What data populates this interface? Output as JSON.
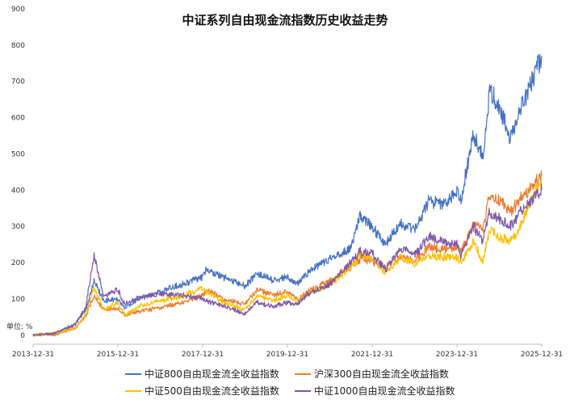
{
  "chart_data": {
    "type": "line",
    "title": "中证系列自由现金流指数历史收益走势",
    "unit_label": "单位: %",
    "ylim": [
      -25,
      900
    ],
    "yticks": [
      0,
      100,
      200,
      300,
      400,
      500,
      600,
      700,
      800,
      900
    ],
    "xlim": [
      "2013-12-31",
      "2025-12-31"
    ],
    "xticks": [
      "2013-12-31",
      "2015-12-31",
      "2017-12-31",
      "2019-12-31",
      "2021-12-31",
      "2023-12-31",
      "2025-12-31"
    ],
    "legend_position": "bottom",
    "grid": false,
    "series": [
      {
        "name": "中证800自由现金流全收益指数",
        "color": "#4472C4",
        "points": [
          [
            "2013-12-31",
            0
          ],
          [
            "2014-06-30",
            5
          ],
          [
            "2014-12-31",
            30
          ],
          [
            "2015-03-31",
            70
          ],
          [
            "2015-06-10",
            150
          ],
          [
            "2015-08-31",
            95
          ],
          [
            "2015-12-31",
            100
          ],
          [
            "2016-03-01",
            75
          ],
          [
            "2016-06-30",
            100
          ],
          [
            "2016-12-31",
            120
          ],
          [
            "2017-06-30",
            140
          ],
          [
            "2017-12-31",
            160
          ],
          [
            "2018-01-31",
            180
          ],
          [
            "2018-06-30",
            160
          ],
          [
            "2018-12-31",
            135
          ],
          [
            "2019-04-15",
            170
          ],
          [
            "2019-08-31",
            150
          ],
          [
            "2019-12-31",
            160
          ],
          [
            "2020-03-20",
            140
          ],
          [
            "2020-06-30",
            175
          ],
          [
            "2020-12-31",
            210
          ],
          [
            "2021-06-30",
            240
          ],
          [
            "2021-09-15",
            330
          ],
          [
            "2021-12-31",
            300
          ],
          [
            "2022-04-26",
            250
          ],
          [
            "2022-08-31",
            310
          ],
          [
            "2022-12-31",
            290
          ],
          [
            "2023-04-30",
            370
          ],
          [
            "2023-08-31",
            360
          ],
          [
            "2023-12-31",
            400
          ],
          [
            "2024-02-05",
            370
          ],
          [
            "2024-05-20",
            560
          ],
          [
            "2024-08-10",
            490
          ],
          [
            "2024-10-08",
            670
          ],
          [
            "2024-12-31",
            630
          ],
          [
            "2025-04-08",
            540
          ],
          [
            "2025-06-30",
            620
          ],
          [
            "2025-09-30",
            700
          ],
          [
            "2025-12-31",
            770
          ]
        ]
      },
      {
        "name": "沪深300自由现金流全收益指数",
        "color": "#ED7D31",
        "points": [
          [
            "2013-12-31",
            0
          ],
          [
            "2014-06-30",
            0
          ],
          [
            "2014-12-31",
            20
          ],
          [
            "2015-03-31",
            55
          ],
          [
            "2015-06-10",
            110
          ],
          [
            "2015-08-31",
            70
          ],
          [
            "2015-12-31",
            75
          ],
          [
            "2016-03-01",
            55
          ],
          [
            "2016-06-30",
            65
          ],
          [
            "2016-12-31",
            75
          ],
          [
            "2017-06-30",
            90
          ],
          [
            "2017-12-31",
            110
          ],
          [
            "2018-01-31",
            125
          ],
          [
            "2018-06-30",
            100
          ],
          [
            "2018-12-31",
            85
          ],
          [
            "2019-04-15",
            125
          ],
          [
            "2019-08-31",
            110
          ],
          [
            "2019-12-31",
            120
          ],
          [
            "2020-03-20",
            100
          ],
          [
            "2020-06-30",
            120
          ],
          [
            "2020-12-31",
            150
          ],
          [
            "2021-06-30",
            190
          ],
          [
            "2021-09-15",
            210
          ],
          [
            "2021-12-31",
            205
          ],
          [
            "2022-04-26",
            190
          ],
          [
            "2022-08-31",
            215
          ],
          [
            "2022-12-31",
            205
          ],
          [
            "2023-04-30",
            245
          ],
          [
            "2023-08-31",
            235
          ],
          [
            "2023-12-31",
            245
          ],
          [
            "2024-02-05",
            230
          ],
          [
            "2024-05-20",
            310
          ],
          [
            "2024-08-10",
            290
          ],
          [
            "2024-10-08",
            390
          ],
          [
            "2024-12-31",
            370
          ],
          [
            "2025-04-08",
            340
          ],
          [
            "2025-06-30",
            375
          ],
          [
            "2025-09-30",
            405
          ],
          [
            "2025-12-31",
            440
          ]
        ]
      },
      {
        "name": "中证500自由现金流全收益指数",
        "color": "#FFC000",
        "points": [
          [
            "2013-12-31",
            0
          ],
          [
            "2014-06-30",
            5
          ],
          [
            "2014-12-31",
            20
          ],
          [
            "2015-03-31",
            60
          ],
          [
            "2015-06-10",
            130
          ],
          [
            "2015-08-31",
            70
          ],
          [
            "2015-12-31",
            90
          ],
          [
            "2016-03-01",
            55
          ],
          [
            "2016-06-30",
            80
          ],
          [
            "2016-12-31",
            95
          ],
          [
            "2017-06-30",
            105
          ],
          [
            "2017-12-31",
            130
          ],
          [
            "2018-01-31",
            120
          ],
          [
            "2018-06-30",
            90
          ],
          [
            "2018-12-31",
            70
          ],
          [
            "2019-04-15",
            110
          ],
          [
            "2019-08-31",
            95
          ],
          [
            "2019-12-31",
            110
          ],
          [
            "2020-03-20",
            95
          ],
          [
            "2020-06-30",
            115
          ],
          [
            "2020-12-31",
            140
          ],
          [
            "2021-06-30",
            185
          ],
          [
            "2021-09-15",
            220
          ],
          [
            "2021-12-31",
            215
          ],
          [
            "2022-04-26",
            170
          ],
          [
            "2022-08-31",
            215
          ],
          [
            "2022-12-31",
            195
          ],
          [
            "2023-04-30",
            220
          ],
          [
            "2023-08-31",
            215
          ],
          [
            "2023-12-31",
            215
          ],
          [
            "2024-02-05",
            195
          ],
          [
            "2024-05-20",
            260
          ],
          [
            "2024-08-10",
            200
          ],
          [
            "2024-10-08",
            290
          ],
          [
            "2024-12-31",
            270
          ],
          [
            "2025-04-08",
            260
          ],
          [
            "2025-06-30",
            300
          ],
          [
            "2025-09-30",
            370
          ],
          [
            "2025-12-31",
            430
          ]
        ]
      },
      {
        "name": "中证1000自由现金流全收益指数",
        "color": "#7E57A8",
        "points": [
          [
            "2013-12-31",
            0
          ],
          [
            "2014-06-30",
            5
          ],
          [
            "2014-12-31",
            30
          ],
          [
            "2015-03-31",
            80
          ],
          [
            "2015-06-10",
            220
          ],
          [
            "2015-08-31",
            105
          ],
          [
            "2015-12-31",
            125
          ],
          [
            "2016-03-01",
            85
          ],
          [
            "2016-06-30",
            105
          ],
          [
            "2016-12-31",
            115
          ],
          [
            "2017-06-30",
            110
          ],
          [
            "2017-12-31",
            100
          ],
          [
            "2018-01-31",
            95
          ],
          [
            "2018-06-30",
            80
          ],
          [
            "2018-12-31",
            60
          ],
          [
            "2019-04-15",
            90
          ],
          [
            "2019-08-31",
            80
          ],
          [
            "2019-12-31",
            90
          ],
          [
            "2020-03-20",
            85
          ],
          [
            "2020-06-30",
            115
          ],
          [
            "2020-12-31",
            140
          ],
          [
            "2021-06-30",
            200
          ],
          [
            "2021-09-15",
            230
          ],
          [
            "2021-12-31",
            225
          ],
          [
            "2022-04-26",
            180
          ],
          [
            "2022-08-31",
            240
          ],
          [
            "2022-12-31",
            220
          ],
          [
            "2023-04-30",
            270
          ],
          [
            "2023-08-31",
            260
          ],
          [
            "2023-12-31",
            250
          ],
          [
            "2024-02-05",
            220
          ],
          [
            "2024-05-20",
            300
          ],
          [
            "2024-08-10",
            260
          ],
          [
            "2024-10-08",
            340
          ],
          [
            "2024-12-31",
            320
          ],
          [
            "2025-04-08",
            300
          ],
          [
            "2025-06-30",
            340
          ],
          [
            "2025-09-30",
            370
          ],
          [
            "2025-12-31",
            400
          ]
        ]
      }
    ]
  }
}
